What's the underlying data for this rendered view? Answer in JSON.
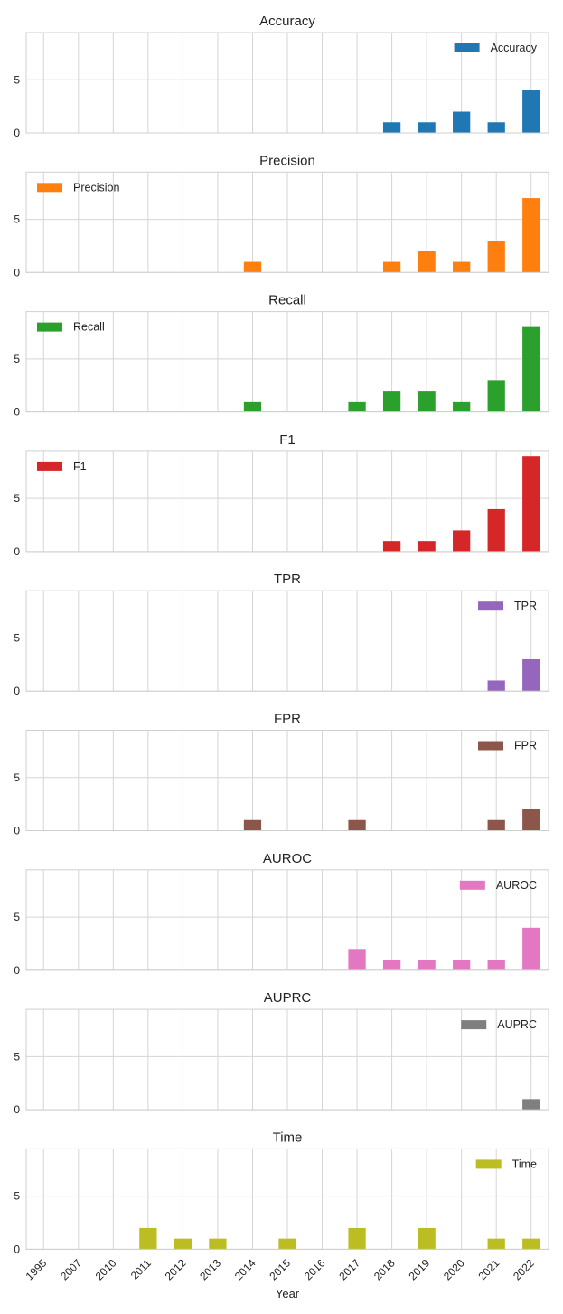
{
  "chart_data": {
    "type": "bar",
    "layout": "stacked-subplots",
    "categories": [
      "1995",
      "2007",
      "2010",
      "2011",
      "2012",
      "2013",
      "2014",
      "2015",
      "2016",
      "2017",
      "2018",
      "2019",
      "2020",
      "2021",
      "2022"
    ],
    "xlabel": "Year",
    "ylim": [
      0,
      9.45
    ],
    "yticks": [
      0,
      5
    ],
    "grid": true,
    "series": [
      {
        "name": "Accuracy",
        "color": "#1f77b4",
        "legend": "top-right",
        "values": [
          0,
          0,
          0,
          0,
          0,
          0,
          0,
          0,
          0,
          0,
          1,
          1,
          2,
          1,
          4
        ]
      },
      {
        "name": "Precision",
        "color": "#ff7f0e",
        "legend": "top-left",
        "values": [
          0,
          0,
          0,
          0,
          0,
          0,
          1,
          0,
          0,
          0,
          1,
          2,
          1,
          3,
          7
        ]
      },
      {
        "name": "Recall",
        "color": "#2ca02c",
        "legend": "top-left",
        "values": [
          0,
          0,
          0,
          0,
          0,
          0,
          1,
          0,
          0,
          1,
          2,
          2,
          1,
          3,
          8
        ]
      },
      {
        "name": "F1",
        "color": "#d62728",
        "legend": "top-left",
        "values": [
          0,
          0,
          0,
          0,
          0,
          0,
          0,
          0,
          0,
          0,
          1,
          1,
          2,
          4,
          9
        ]
      },
      {
        "name": "TPR",
        "color": "#9467bd",
        "legend": "top-right",
        "values": [
          0,
          0,
          0,
          0,
          0,
          0,
          0,
          0,
          0,
          0,
          0,
          0,
          0,
          1,
          3
        ]
      },
      {
        "name": "FPR",
        "color": "#8c564b",
        "legend": "top-right",
        "values": [
          0,
          0,
          0,
          0,
          0,
          0,
          1,
          0,
          0,
          1,
          0,
          0,
          0,
          1,
          2
        ]
      },
      {
        "name": "AUROC",
        "color": "#e377c2",
        "legend": "top-right",
        "values": [
          0,
          0,
          0,
          0,
          0,
          0,
          0,
          0,
          0,
          2,
          1,
          1,
          1,
          1,
          4
        ]
      },
      {
        "name": "AUPRC",
        "color": "#7f7f7f",
        "legend": "top-right",
        "values": [
          0,
          0,
          0,
          0,
          0,
          0,
          0,
          0,
          0,
          0,
          0,
          0,
          0,
          0,
          1
        ]
      },
      {
        "name": "Time",
        "color": "#bcbd22",
        "legend": "top-right",
        "values": [
          0,
          0,
          0,
          2,
          1,
          1,
          0,
          1,
          0,
          2,
          0,
          2,
          0,
          1,
          1
        ]
      }
    ]
  }
}
